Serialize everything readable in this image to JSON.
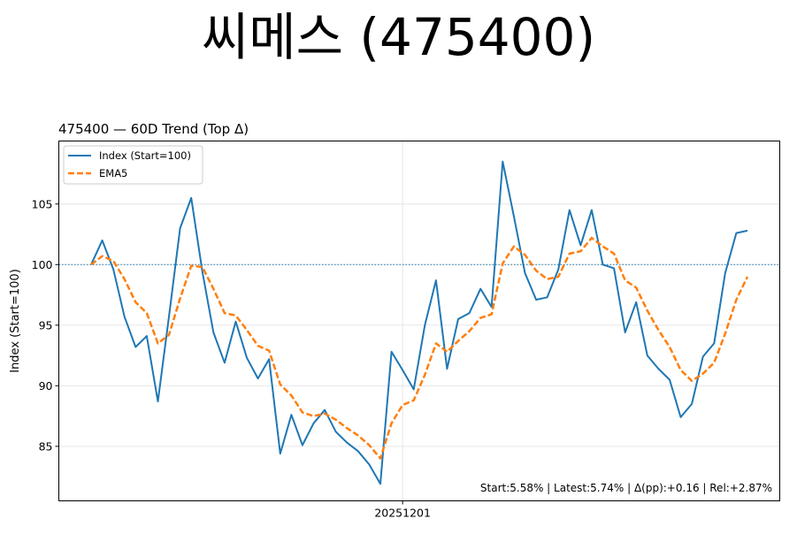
{
  "page_title": "씨메스 (475400)",
  "chart_data": {
    "type": "line",
    "title": "475400 — 60D Trend (Top Δ)",
    "xlabel": "",
    "ylabel": "Index (Start=100)",
    "x_tick_labels": [
      {
        "index": 28,
        "label": "20251201"
      }
    ],
    "ylim": [
      80.5,
      110.2
    ],
    "y_ticks": [
      85,
      90,
      95,
      100,
      105
    ],
    "reference_line": {
      "y": 100,
      "style": "dotted",
      "color": "#1f77b4"
    },
    "grid": true,
    "legend_placement": "top-left",
    "annotation": "Start:5.58% | Latest:5.74% | Δ(pp):+0.16 | Rel:+2.87%",
    "series": [
      {
        "name": "Index (Start=100)",
        "color": "#1f77b4",
        "style": "solid",
        "values": [
          100.0,
          102.0,
          99.6,
          95.7,
          93.2,
          94.1,
          88.7,
          95.7,
          103.0,
          105.5,
          99.4,
          94.4,
          91.9,
          95.3,
          92.3,
          90.6,
          92.2,
          84.4,
          87.6,
          85.1,
          86.9,
          88.0,
          86.2,
          85.3,
          84.6,
          83.5,
          81.9,
          92.8,
          91.3,
          89.7,
          95.0,
          98.7,
          91.4,
          95.5,
          96.0,
          98.0,
          96.5,
          108.5,
          104.0,
          99.3,
          97.1,
          97.3,
          99.6,
          104.5,
          101.6,
          104.5,
          100.0,
          99.7,
          94.4,
          96.9,
          92.5,
          91.4,
          90.5,
          87.4,
          88.5,
          92.4,
          93.5,
          99.3,
          102.6,
          102.8
        ]
      },
      {
        "name": "EMA5",
        "color": "#ff7f0e",
        "style": "dashed",
        "values": [
          100.0,
          100.7,
          100.3,
          98.8,
          96.9,
          96.0,
          93.5,
          94.2,
          97.2,
          99.9,
          99.8,
          98.0,
          96.0,
          95.8,
          94.6,
          93.3,
          92.9,
          90.1,
          89.2,
          87.8,
          87.5,
          87.7,
          87.2,
          86.5,
          85.9,
          85.1,
          84.0,
          86.9,
          88.4,
          88.8,
          90.9,
          93.5,
          92.8,
          93.7,
          94.5,
          95.6,
          95.9,
          100.1,
          101.5,
          100.8,
          99.5,
          98.8,
          99.0,
          100.9,
          101.1,
          102.2,
          101.5,
          100.9,
          98.7,
          98.1,
          96.2,
          94.6,
          93.2,
          91.3,
          90.4,
          91.0,
          91.9,
          94.3,
          97.1,
          99.0
        ]
      }
    ]
  }
}
